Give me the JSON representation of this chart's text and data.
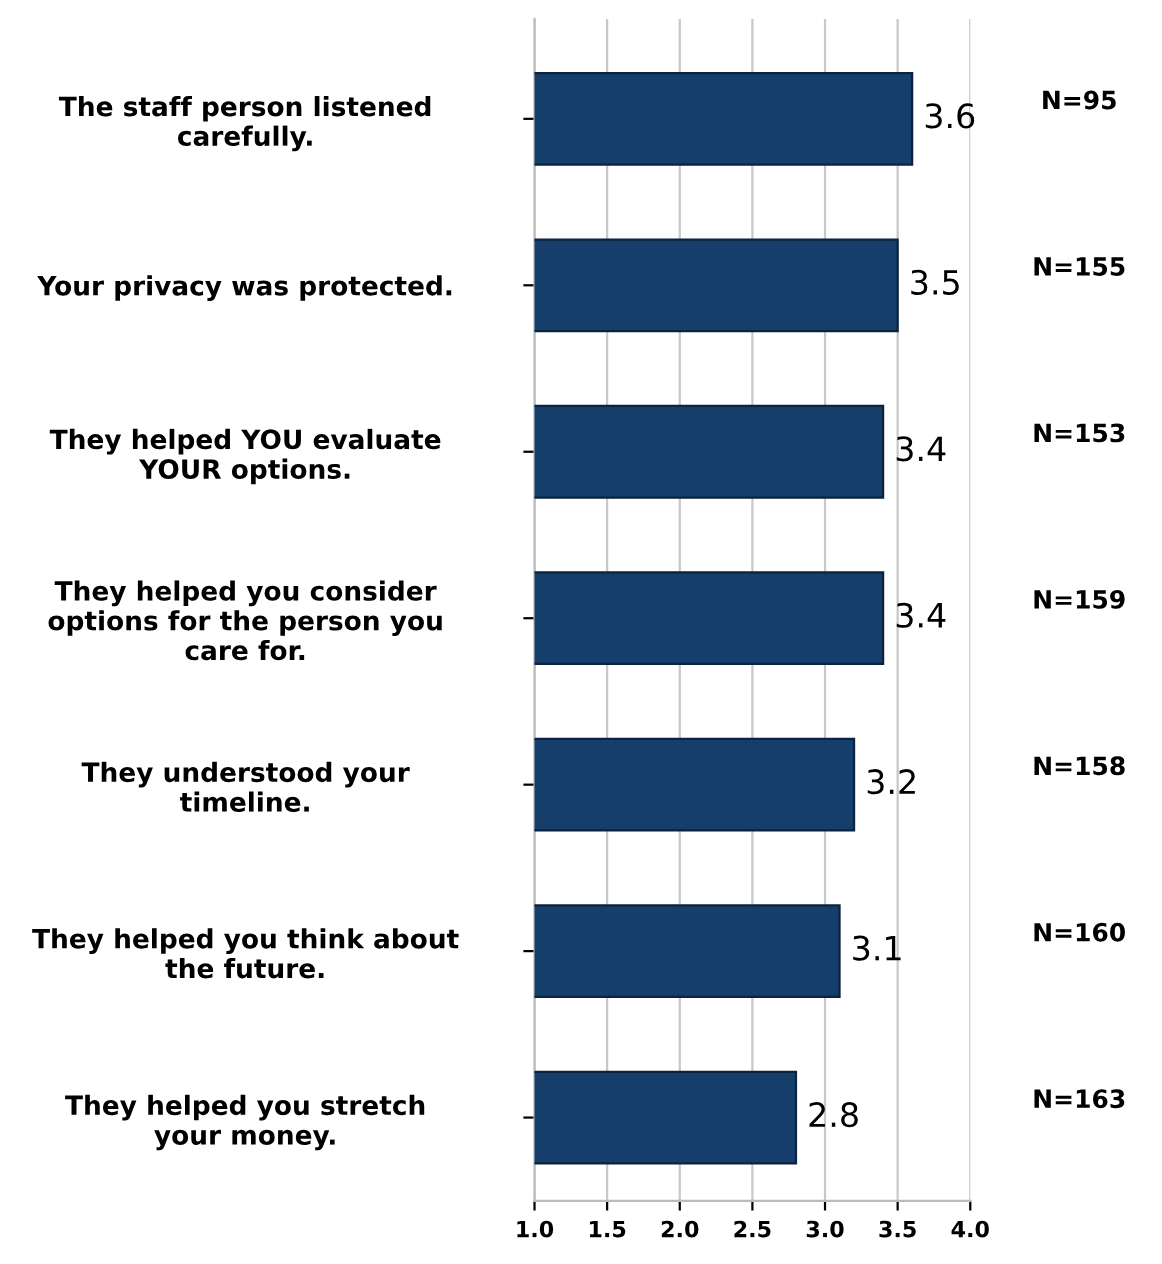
{
  "chart_data": {
    "type": "bar",
    "orientation": "horizontal",
    "categories": [
      "The staff person listened\ncarefully.",
      "Your privacy was protected.",
      "They helped YOU evaluate\nYOUR options.",
      "They helped you consider\noptions for the person you\ncare for.",
      "They understood your\ntimeline.",
      "They helped you think about\nthe future.",
      "They helped you stretch\nyour money."
    ],
    "values": [
      3.6,
      3.5,
      3.4,
      3.4,
      3.2,
      3.1,
      2.8
    ],
    "color": "#153e6a",
    "data_labels": true,
    "xlim": [
      1.0,
      4.0
    ],
    "xticks": [
      {
        "value": 1.0,
        "label": "1.0"
      },
      {
        "value": 1.5,
        "label": "1.5"
      },
      {
        "value": 2.0,
        "label": "2.0"
      },
      {
        "value": 2.5,
        "label": "2.5"
      },
      {
        "value": 3.0,
        "label": "3.0"
      },
      {
        "value": 3.5,
        "label": "3.5"
      },
      {
        "value": 4.0,
        "label": "4.0"
      }
    ],
    "grid": "x",
    "legend": false,
    "annotations": [
      "N=95",
      "N=155",
      "N=153",
      "N=159",
      "N=158",
      "N=160",
      "N=163"
    ]
  }
}
